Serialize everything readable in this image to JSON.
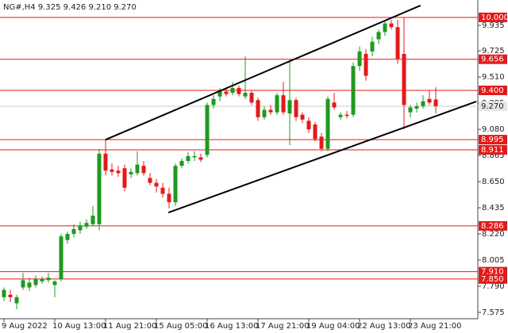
{
  "chart_data": {
    "type": "candlestick",
    "title": "NG#,H4  9.325 9.426 9.210 9.270",
    "categories": [
      "9 Aug 2022",
      null,
      null,
      null,
      null,
      null,
      null,
      null,
      "10 Aug 13:00",
      null,
      null,
      null,
      null,
      null,
      null,
      null,
      "11 Aug 21:00",
      null,
      null,
      null,
      null,
      null,
      null,
      null,
      "15 Aug 05:00",
      null,
      null,
      null,
      null,
      null,
      null,
      null,
      "16 Aug 13:00",
      null,
      null,
      null,
      null,
      null,
      null,
      null,
      "17 Aug 21:00",
      null,
      null,
      null,
      null,
      null,
      null,
      null,
      "19 Aug 04:00",
      null,
      null,
      null,
      null,
      null,
      null,
      null,
      "22 Aug 13:00",
      null,
      null,
      null,
      null,
      null,
      null,
      null,
      "23 Aug 21:00",
      null,
      null,
      null,
      null
    ],
    "open": [
      7.7,
      7.72,
      7.65,
      7.78,
      7.78,
      7.8,
      7.83,
      7.84,
      7.8,
      7.85,
      8.17,
      8.22,
      8.25,
      8.28,
      8.3,
      8.3,
      8.88,
      8.75,
      8.74,
      8.76,
      8.71,
      8.72,
      8.78,
      8.68,
      8.64,
      8.6,
      8.55,
      8.48,
      8.78,
      8.82,
      8.85,
      8.85,
      8.87,
      9.28,
      9.35,
      9.39,
      9.38,
      9.42,
      9.35,
      9.38,
      9.32,
      9.18,
      9.24,
      9.22,
      9.36,
      9.21,
      9.32,
      9.2,
      9.15,
      9.12,
      9.02,
      8.92,
      9.3,
      9.18,
      9.2,
      9.2,
      9.6,
      9.7,
      9.72,
      9.82,
      9.88,
      9.95,
      9.92,
      9.7,
      9.22,
      9.25,
      9.27,
      9.33,
      9.325
    ],
    "high": [
      7.78,
      7.76,
      7.72,
      7.9,
      7.86,
      7.88,
      7.87,
      7.9,
      7.84,
      8.22,
      8.24,
      8.3,
      8.32,
      8.34,
      8.45,
      8.92,
      8.995,
      8.8,
      8.78,
      8.79,
      8.76,
      8.9,
      8.82,
      8.72,
      8.67,
      8.64,
      8.6,
      8.8,
      8.84,
      8.89,
      8.9,
      8.88,
      9.3,
      9.36,
      9.42,
      9.42,
      9.47,
      9.44,
      9.68,
      9.4,
      9.34,
      9.27,
      9.28,
      9.38,
      9.47,
      9.65,
      9.34,
      9.22,
      9.18,
      9.14,
      9.05,
      9.35,
      9.38,
      9.22,
      9.23,
      9.63,
      9.76,
      9.74,
      9.84,
      9.9,
      9.97,
      9.98,
      9.98,
      10.0,
      9.28,
      9.3,
      9.36,
      9.4,
      9.426
    ],
    "low": [
      7.67,
      7.66,
      7.6,
      7.76,
      7.75,
      7.78,
      7.81,
      7.82,
      7.7,
      7.83,
      8.14,
      8.19,
      8.22,
      8.26,
      8.28,
      8.25,
      8.7,
      8.7,
      8.69,
      8.57,
      8.68,
      8.7,
      8.7,
      8.62,
      8.56,
      8.52,
      8.43,
      8.45,
      8.76,
      8.8,
      8.82,
      8.81,
      8.85,
      9.25,
      9.31,
      9.35,
      9.36,
      9.35,
      9.33,
      9.28,
      9.15,
      9.16,
      9.2,
      9.2,
      9.2,
      8.95,
      9.15,
      9.13,
      9.05,
      8.98,
      8.9,
      8.9,
      9.24,
      9.16,
      9.17,
      9.18,
      9.56,
      9.48,
      9.68,
      9.78,
      9.85,
      9.9,
      9.62,
      9.08,
      9.18,
      9.22,
      9.25,
      9.28,
      9.21
    ],
    "close": [
      7.76,
      7.7,
      7.7,
      7.84,
      7.82,
      7.85,
      7.85,
      7.86,
      7.83,
      8.2,
      8.22,
      8.26,
      8.29,
      8.31,
      8.37,
      8.88,
      8.74,
      8.73,
      8.72,
      8.6,
      8.73,
      8.79,
      8.72,
      8.64,
      8.61,
      8.55,
      8.48,
      8.78,
      8.82,
      8.86,
      8.86,
      8.83,
      9.28,
      9.33,
      9.4,
      9.37,
      9.42,
      9.37,
      9.38,
      9.3,
      9.18,
      9.24,
      9.22,
      9.36,
      9.22,
      9.32,
      9.18,
      9.16,
      9.08,
      9.0,
      8.92,
      9.33,
      9.26,
      9.2,
      9.19,
      9.6,
      9.72,
      9.52,
      9.8,
      9.88,
      9.95,
      9.92,
      9.66,
      9.28,
      9.26,
      9.27,
      9.31,
      9.3,
      9.27
    ],
    "up_color": "#1e9a1e",
    "down_color": "#e31a1a",
    "ylim": [
      7.523,
      10.143
    ],
    "yticks": [
      9.935,
      9.725,
      {
        "value": 9.51,
        "label": "9.510"
      },
      9.295,
      {
        "value": 9.08,
        "label": "9.080"
      },
      8.865,
      {
        "value": 8.65,
        "label": "8.650"
      },
      8.435,
      {
        "value": 8.22,
        "label": "8.220"
      },
      8.005,
      {
        "value": 7.79,
        "label": "7.790"
      },
      7.575
    ],
    "levels": [
      {
        "value": 10.0,
        "label": "10.000"
      },
      9.656,
      {
        "value": 9.4,
        "label": "9.400"
      },
      8.995,
      8.911,
      8.286,
      {
        "value": 7.91,
        "label": "7.910"
      },
      {
        "value": 7.85,
        "label": "7.850"
      }
    ],
    "level_color": "#e31a1a",
    "current_price": {
      "value": 9.27,
      "label": "9.270"
    },
    "trendlines": [
      {
        "x": [
          16,
          65.6
        ],
        "y": [
          8.995,
          10.098
        ]
      },
      {
        "x": [
          25.9,
          74.4
        ],
        "y": [
          8.396,
          9.309
        ]
      }
    ]
  }
}
